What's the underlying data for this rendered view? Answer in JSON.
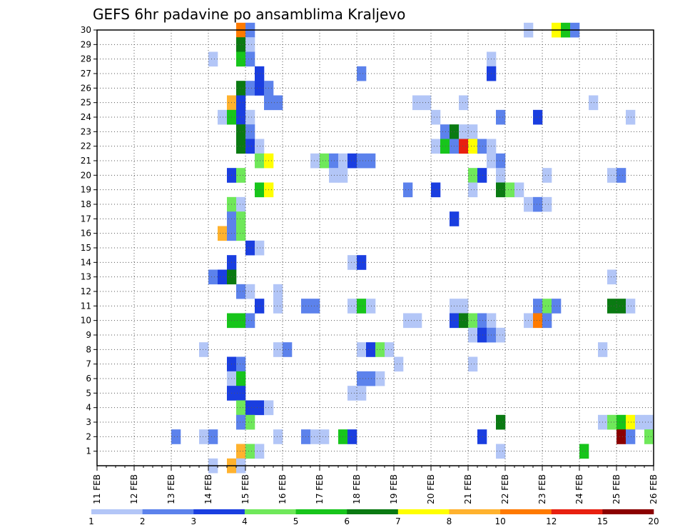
{
  "chart_data": {
    "type": "heatmap",
    "title": "GEFS 6hr padavine po ansamblima Kraljevo",
    "xlabel": "",
    "ylabel": "",
    "x_ticks": [
      "11 FEB",
      "12 FEB",
      "13 FEB",
      "14 FEB",
      "15 FEB",
      "16 FEB",
      "17 FEB",
      "18 FEB",
      "19 FEB",
      "20 FEB",
      "21 FEB",
      "22 FEB",
      "23 FEB",
      "24 FEB",
      "25 FEB",
      "26 FEB"
    ],
    "xlim": [
      "11 FEB 00Z",
      "26 FEB 00Z"
    ],
    "time_step_hours": 6,
    "y_ticks": [
      1,
      2,
      3,
      4,
      5,
      6,
      7,
      8,
      9,
      10,
      11,
      12,
      13,
      14,
      15,
      16,
      17,
      18,
      19,
      20,
      21,
      22,
      23,
      24,
      25,
      26,
      27,
      28,
      29,
      30
    ],
    "ylim": [
      0,
      30
    ],
    "grid": true,
    "colorbar": {
      "position": "bottom",
      "levels": [
        "1",
        "2",
        "3",
        "4",
        "5",
        "6",
        "7",
        "8",
        "10",
        "12",
        "15",
        "20"
      ],
      "colors": [
        "#b3c6f7",
        "#5c82ec",
        "#1a3ee0",
        "#6fe85a",
        "#17c51b",
        "#0a7a12",
        "#ffff00",
        "#ffb22e",
        "#ff7a00",
        "#e82010",
        "#8b0000"
      ]
    },
    "cells_note": "Each cell: [member, step_index, class]. step_index counts 6-hour steps from 11 FEB 00Z. class indexes colorbar.colors (0 = 1-2 mm ... 10 = 20+ mm).",
    "cells": [
      [
        30,
        15,
        8
      ],
      [
        30,
        16,
        1
      ],
      [
        30,
        46,
        0
      ],
      [
        30,
        49,
        6
      ],
      [
        30,
        50,
        4
      ],
      [
        30,
        51,
        1
      ],
      [
        29,
        15,
        5
      ],
      [
        29,
        16,
        0
      ],
      [
        28,
        12,
        0
      ],
      [
        28,
        15,
        4
      ],
      [
        28,
        16,
        1
      ],
      [
        28,
        42,
        0
      ],
      [
        27,
        17,
        2
      ],
      [
        27,
        28,
        1
      ],
      [
        27,
        42,
        2
      ],
      [
        26,
        15,
        5
      ],
      [
        26,
        16,
        1
      ],
      [
        26,
        17,
        2
      ],
      [
        26,
        18,
        1
      ],
      [
        25,
        14,
        7
      ],
      [
        25,
        15,
        2
      ],
      [
        25,
        18,
        1
      ],
      [
        25,
        19,
        1
      ],
      [
        25,
        34,
        0
      ],
      [
        25,
        35,
        0
      ],
      [
        25,
        39,
        0
      ],
      [
        25,
        53,
        0
      ],
      [
        24,
        13,
        0
      ],
      [
        24,
        14,
        4
      ],
      [
        24,
        15,
        2
      ],
      [
        24,
        16,
        0
      ],
      [
        24,
        36,
        0
      ],
      [
        24,
        43,
        1
      ],
      [
        24,
        47,
        2
      ],
      [
        24,
        57,
        0
      ],
      [
        23,
        15,
        5
      ],
      [
        23,
        16,
        1
      ],
      [
        23,
        37,
        1
      ],
      [
        23,
        38,
        5
      ],
      [
        23,
        39,
        0
      ],
      [
        23,
        40,
        0
      ],
      [
        22,
        15,
        5
      ],
      [
        22,
        16,
        2
      ],
      [
        22,
        17,
        0
      ],
      [
        22,
        36,
        0
      ],
      [
        22,
        37,
        4
      ],
      [
        22,
        38,
        1
      ],
      [
        22,
        39,
        9
      ],
      [
        22,
        40,
        6
      ],
      [
        22,
        41,
        1
      ],
      [
        22,
        42,
        0
      ],
      [
        21,
        17,
        3
      ],
      [
        21,
        18,
        6
      ],
      [
        21,
        23,
        0
      ],
      [
        21,
        24,
        3
      ],
      [
        21,
        25,
        1
      ],
      [
        21,
        26,
        0
      ],
      [
        21,
        27,
        2
      ],
      [
        21,
        28,
        1
      ],
      [
        21,
        29,
        1
      ],
      [
        21,
        42,
        0
      ],
      [
        21,
        43,
        1
      ],
      [
        20,
        14,
        2
      ],
      [
        20,
        15,
        3
      ],
      [
        20,
        25,
        0
      ],
      [
        20,
        26,
        0
      ],
      [
        20,
        40,
        3
      ],
      [
        20,
        41,
        2
      ],
      [
        20,
        43,
        0
      ],
      [
        20,
        48,
        0
      ],
      [
        20,
        55,
        0
      ],
      [
        20,
        56,
        1
      ],
      [
        19,
        17,
        4
      ],
      [
        19,
        18,
        6
      ],
      [
        19,
        33,
        1
      ],
      [
        19,
        36,
        2
      ],
      [
        19,
        40,
        0
      ],
      [
        19,
        43,
        5
      ],
      [
        19,
        44,
        3
      ],
      [
        19,
        45,
        0
      ],
      [
        18,
        14,
        3
      ],
      [
        18,
        15,
        0
      ],
      [
        18,
        46,
        0
      ],
      [
        18,
        47,
        1
      ],
      [
        18,
        48,
        0
      ],
      [
        17,
        14,
        1
      ],
      [
        17,
        15,
        3
      ],
      [
        17,
        38,
        2
      ],
      [
        16,
        13,
        7
      ],
      [
        16,
        14,
        1
      ],
      [
        16,
        15,
        3
      ],
      [
        15,
        16,
        2
      ],
      [
        15,
        17,
        0
      ],
      [
        14,
        14,
        2
      ],
      [
        14,
        27,
        0
      ],
      [
        14,
        28,
        2
      ],
      [
        13,
        12,
        1
      ],
      [
        13,
        13,
        2
      ],
      [
        13,
        14,
        5
      ],
      [
        13,
        55,
        0
      ],
      [
        12,
        15,
        1
      ],
      [
        12,
        16,
        0
      ],
      [
        12,
        19,
        0
      ],
      [
        11,
        17,
        2
      ],
      [
        11,
        19,
        0
      ],
      [
        11,
        22,
        1
      ],
      [
        11,
        23,
        1
      ],
      [
        11,
        27,
        0
      ],
      [
        11,
        28,
        4
      ],
      [
        11,
        29,
        0
      ],
      [
        11,
        38,
        0
      ],
      [
        11,
        39,
        0
      ],
      [
        11,
        47,
        1
      ],
      [
        11,
        48,
        3
      ],
      [
        11,
        49,
        1
      ],
      [
        11,
        55,
        5
      ],
      [
        11,
        56,
        5
      ],
      [
        11,
        57,
        0
      ],
      [
        10,
        14,
        4
      ],
      [
        10,
        15,
        4
      ],
      [
        10,
        16,
        1
      ],
      [
        10,
        33,
        0
      ],
      [
        10,
        34,
        0
      ],
      [
        10,
        38,
        2
      ],
      [
        10,
        39,
        5
      ],
      [
        10,
        40,
        3
      ],
      [
        10,
        41,
        1
      ],
      [
        10,
        42,
        0
      ],
      [
        10,
        46,
        0
      ],
      [
        10,
        47,
        8
      ],
      [
        10,
        48,
        1
      ],
      [
        9,
        40,
        0
      ],
      [
        9,
        41,
        2
      ],
      [
        9,
        42,
        1
      ],
      [
        9,
        43,
        0
      ],
      [
        8,
        11,
        0
      ],
      [
        8,
        19,
        0
      ],
      [
        8,
        20,
        1
      ],
      [
        8,
        28,
        0
      ],
      [
        8,
        29,
        2
      ],
      [
        8,
        30,
        3
      ],
      [
        8,
        31,
        0
      ],
      [
        8,
        54,
        0
      ],
      [
        7,
        14,
        2
      ],
      [
        7,
        15,
        1
      ],
      [
        7,
        32,
        0
      ],
      [
        7,
        40,
        0
      ],
      [
        6,
        14,
        0
      ],
      [
        6,
        15,
        4
      ],
      [
        6,
        28,
        1
      ],
      [
        6,
        29,
        1
      ],
      [
        6,
        30,
        0
      ],
      [
        5,
        14,
        2
      ],
      [
        5,
        15,
        2
      ],
      [
        5,
        27,
        0
      ],
      [
        5,
        28,
        0
      ],
      [
        4,
        15,
        3
      ],
      [
        4,
        16,
        2
      ],
      [
        4,
        17,
        2
      ],
      [
        4,
        18,
        0
      ],
      [
        3,
        15,
        1
      ],
      [
        3,
        16,
        3
      ],
      [
        3,
        43,
        5
      ],
      [
        3,
        54,
        0
      ],
      [
        3,
        55,
        3
      ],
      [
        3,
        56,
        4
      ],
      [
        3,
        57,
        6
      ],
      [
        3,
        58,
        0
      ],
      [
        3,
        59,
        0
      ],
      [
        2,
        8,
        1
      ],
      [
        2,
        11,
        0
      ],
      [
        2,
        12,
        1
      ],
      [
        2,
        19,
        0
      ],
      [
        2,
        22,
        1
      ],
      [
        2,
        23,
        0
      ],
      [
        2,
        24,
        0
      ],
      [
        2,
        26,
        4
      ],
      [
        2,
        27,
        2
      ],
      [
        2,
        41,
        2
      ],
      [
        2,
        56,
        10
      ],
      [
        2,
        57,
        1
      ],
      [
        2,
        59,
        3
      ],
      [
        1,
        15,
        7
      ],
      [
        1,
        16,
        3
      ],
      [
        1,
        17,
        0
      ],
      [
        1,
        43,
        0
      ],
      [
        1,
        52,
        4
      ],
      [
        0,
        12,
        0
      ],
      [
        0,
        14,
        7
      ],
      [
        0,
        15,
        0
      ]
    ]
  }
}
